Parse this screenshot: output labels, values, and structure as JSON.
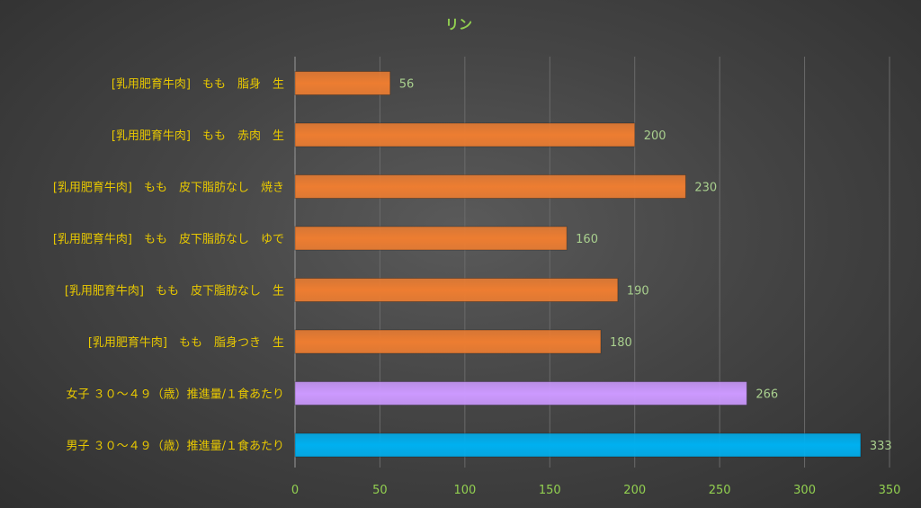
{
  "chart_data": {
    "type": "bar",
    "orientation": "horizontal",
    "title": "リン",
    "categories": [
      "[乳用肥育牛肉]　もも　脂身　生",
      "[乳用肥育牛肉]　もも　赤肉　生",
      "[乳用肥育牛肉]　もも　皮下脂肪なし　焼き",
      "[乳用肥育牛肉]　もも　皮下脂肪なし　ゆで",
      "[乳用肥育牛肉]　もも　皮下脂肪なし　生",
      "[乳用肥育牛肉]　もも　脂身つき　生",
      "女子 ３０～４９（歳）推進量/１食あたり",
      "男子 ３０～４９（歳）推進量/１食あたり"
    ],
    "values": [
      56,
      200,
      230,
      160,
      190,
      180,
      266,
      333
    ],
    "colors": [
      "#ed7d31",
      "#ed7d31",
      "#ed7d31",
      "#ed7d31",
      "#ed7d31",
      "#ed7d31",
      "#cc99ff",
      "#00b0f0"
    ],
    "xlim": [
      0,
      350
    ],
    "xticks": [
      0,
      50,
      100,
      150,
      200,
      250,
      300,
      350
    ],
    "grid": true,
    "legend": "none"
  }
}
